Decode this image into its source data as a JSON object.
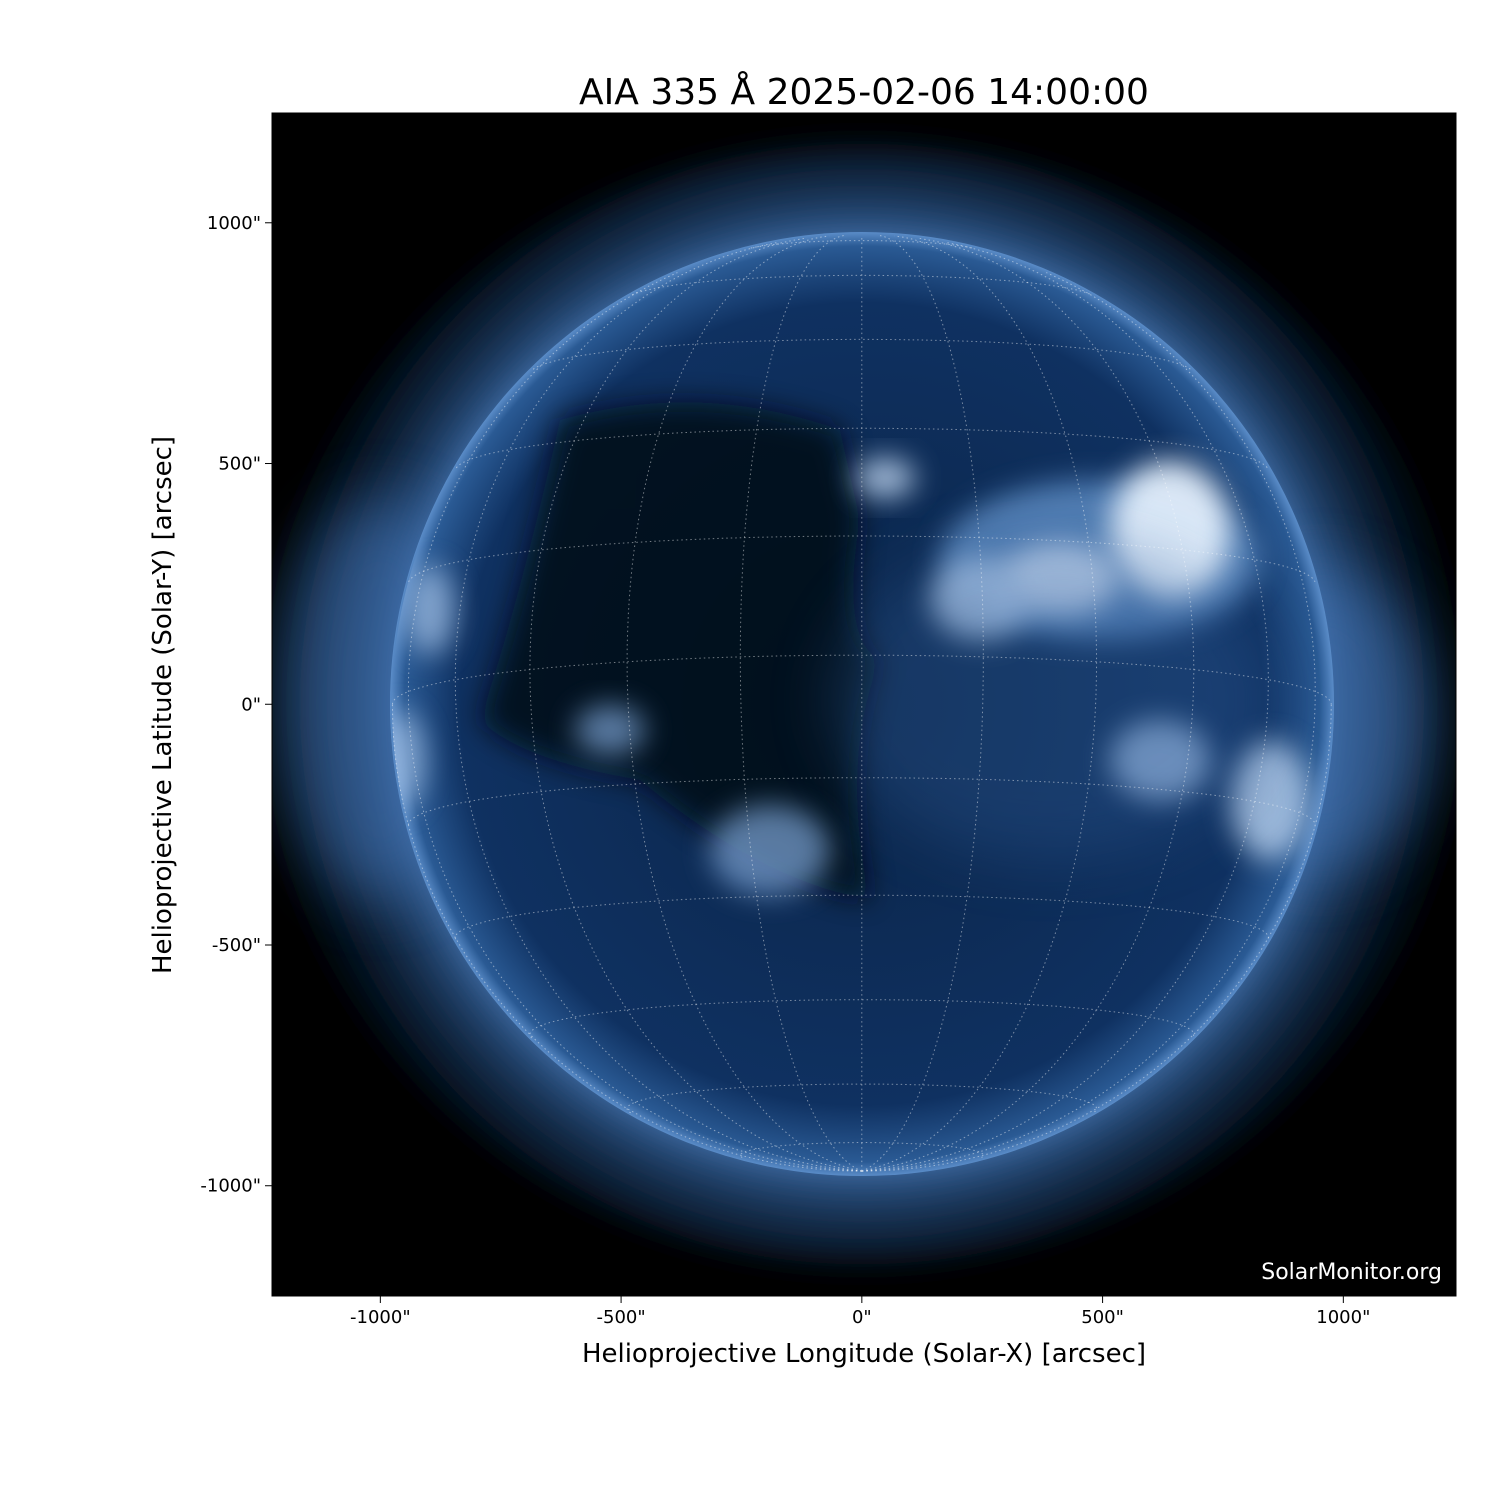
{
  "chart_data": {
    "type": "image",
    "title": "AIA 335 Å 2025-02-06 14:00:00",
    "xlabel": "Helioprojective Longitude (Solar-X) [arcsec]",
    "ylabel": "Helioprojective Latitude (Solar-Y) [arcsec]",
    "xlim": [
      -1225,
      1234
    ],
    "ylim": [
      -1229,
      1228
    ],
    "xticks": [
      -1000,
      -500,
      0,
      500,
      1000
    ],
    "xtick_labels": [
      "-1000\"",
      "-500\"",
      "0\"",
      "500\"",
      "1000\""
    ],
    "yticks": [
      1000,
      500,
      0,
      -500,
      -1000
    ],
    "ytick_labels": [
      "1000\"",
      "500\"",
      "0\"",
      "-500\"",
      "-1000\""
    ],
    "solar_radius_arcsec": 975,
    "grid": "heliographic, 15° spacing, dotted",
    "colormap": "sdoaia335",
    "colors": {
      "background": "#000000",
      "disk": "#0b2a52",
      "bright": "#e8f2ff",
      "glow": "#5f8fc8"
    },
    "watermark": "SolarMonitor.org"
  }
}
